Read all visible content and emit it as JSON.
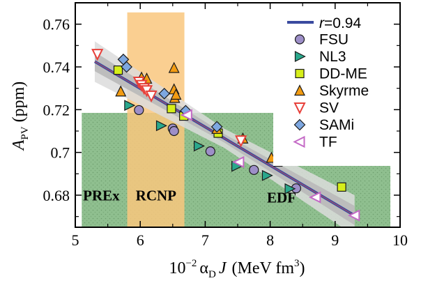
{
  "chart_data": {
    "type": "scatter",
    "xlabel": {
      "prefix": "10",
      "exp": "−2",
      "greek": "α",
      "sub": "D",
      "var": "J",
      "unit_pre": "(MeV fm",
      "unit_exp": "3",
      "unit_post": ")"
    },
    "ylabel": {
      "main": "A",
      "sub": "PV",
      "unit": "(ppm)"
    },
    "xlim": [
      5,
      10
    ],
    "ylim": [
      0.665,
      0.77
    ],
    "xticks": [
      5,
      6,
      7,
      8,
      9,
      10
    ],
    "yticks": [
      0.68,
      0.7,
      0.72,
      0.74,
      0.76
    ],
    "ytick_labels": [
      "0.68",
      "0.7",
      "0.72",
      "0.74",
      "0.76"
    ],
    "regions": [
      {
        "label": "PREx",
        "x": [
          5.1,
          9.85
        ],
        "y": [
          0.665,
          0.7185
        ],
        "color": "#8fbf8f",
        "pattern": "dotted-green"
      },
      {
        "label": "RCNP",
        "x": [
          5.8,
          6.68
        ],
        "y": [
          0.665,
          0.7655
        ],
        "color": "#f9c77e"
      }
    ],
    "region_labels": [
      {
        "text": "PREx",
        "x": 5.12,
        "y": 0.6775
      },
      {
        "text": "RCNP",
        "x": 5.93,
        "y": 0.6775
      },
      {
        "text": "EDF",
        "x": 7.95,
        "y": 0.6765
      }
    ],
    "fit": {
      "label": "r=0.94",
      "r_value": "0.94",
      "x": [
        5.3,
        9.3
      ],
      "y": [
        0.7425,
        0.6705
      ],
      "color": "#3a4a9f"
    },
    "legend_position": "top-right",
    "series": [
      {
        "name": "FSU",
        "marker": "circle",
        "color": "#9d8fc8",
        "x": [
          5.98,
          6.5,
          6.52,
          7.08,
          7.75,
          8.4
        ],
        "y": [
          0.7198,
          0.7112,
          0.71,
          0.7005,
          0.6918,
          0.6832
        ]
      },
      {
        "name": "NL3",
        "marker": "triangle-right",
        "color": "#2aa88c",
        "x": [
          5.83,
          6.32,
          6.9,
          7.48,
          7.95,
          8.3
        ],
        "y": [
          0.722,
          0.7125,
          0.703,
          0.6935,
          0.6892,
          0.683
        ]
      },
      {
        "name": "DD-ME",
        "marker": "square",
        "color": "#d6ee1a",
        "x": [
          5.66,
          6.48,
          6.67,
          7.2,
          8.12,
          9.1
        ],
        "y": [
          0.7385,
          0.7205,
          0.717,
          0.709,
          0.6955,
          0.6838
        ]
      },
      {
        "name": "Skyrme",
        "marker": "triangle-up",
        "color": "#f39c12",
        "x": [
          5.7,
          6.02,
          6.1,
          6.52,
          6.52,
          6.53,
          6.55,
          7.18,
          7.58,
          8.02
        ],
        "y": [
          0.7285,
          0.735,
          0.7345,
          0.7395,
          0.7295,
          0.7255,
          0.727,
          0.711,
          0.7065,
          0.6975
        ]
      },
      {
        "name": "SV",
        "marker": "triangle-down",
        "color": "#e8403a",
        "x": [
          5.34,
          5.98,
          6.02,
          6.06,
          6.1,
          6.17,
          7.55
        ],
        "y": [
          0.746,
          0.733,
          0.7315,
          0.73,
          0.729,
          0.7265,
          0.7055
        ]
      },
      {
        "name": "SAMi",
        "marker": "diamond",
        "color": "#7da7e0",
        "x": [
          5.74,
          5.79,
          6.37,
          6.7,
          7.18
        ],
        "y": [
          0.7435,
          0.74,
          0.7275,
          0.7195,
          0.712
        ]
      },
      {
        "name": "TF",
        "marker": "triangle-left",
        "color": "#c46ac6",
        "x": [
          6.72,
          7.52,
          8.7,
          9.3
        ],
        "y": [
          0.7175,
          0.6955,
          0.679,
          0.6705
        ]
      }
    ]
  }
}
